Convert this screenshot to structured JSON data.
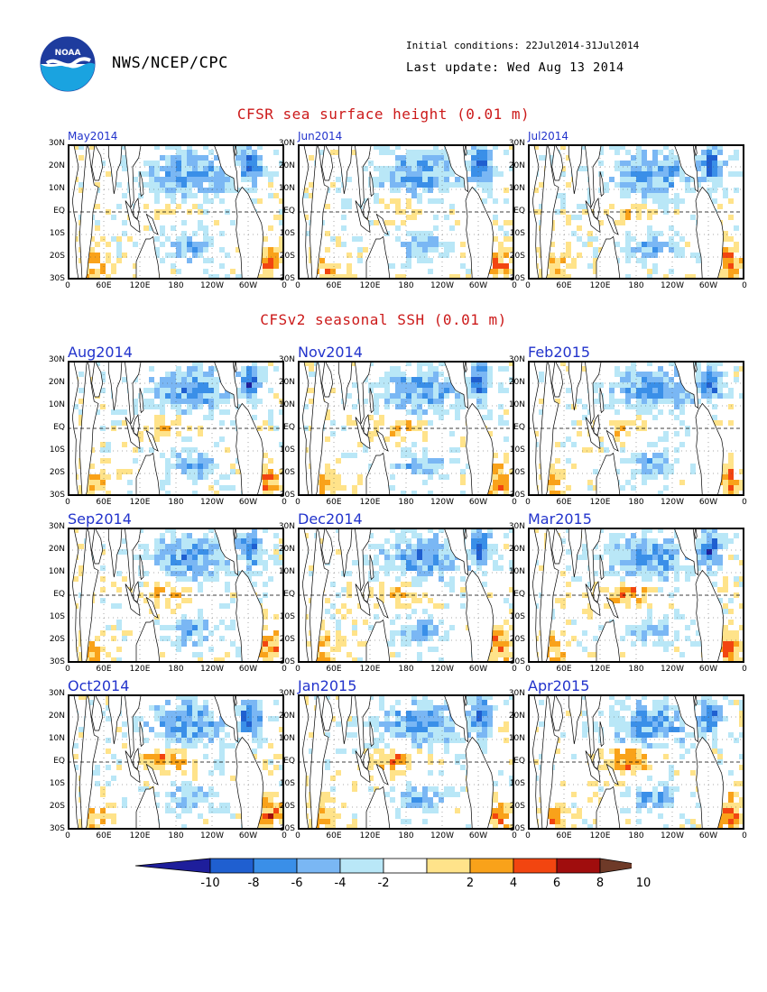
{
  "header": {
    "agency": "NWS/NCEP/CPC",
    "initial_conditions": "Initial conditions: 22Jul2014-31Jul2014",
    "last_update": "Last update: Wed Aug 13 2014",
    "logo_text": "NOAA"
  },
  "sections": [
    {
      "title": "CFSR sea surface height (0.01 m)",
      "panels": [
        "May2014",
        "Jun2014",
        "Jul2014"
      ]
    },
    {
      "title": "CFSv2 seasonal SSH (0.01 m)",
      "panels": [
        "Aug2014",
        "Nov2014",
        "Feb2015",
        "Sep2014",
        "Dec2014",
        "Mar2015",
        "Oct2014",
        "Jan2015",
        "Apr2015"
      ]
    }
  ],
  "axes": {
    "lat_ticks": [
      "30N",
      "20N",
      "10N",
      "EQ",
      "10S",
      "20S",
      "30S"
    ],
    "lon_ticks": [
      "0",
      "60E",
      "120E",
      "180",
      "120W",
      "60W",
      "0"
    ]
  },
  "colorbar": {
    "labels": [
      "-10",
      "-8",
      "-6",
      "-4",
      "-2",
      "2",
      "4",
      "6",
      "8",
      "10"
    ],
    "colors": [
      "#1e1e9b",
      "#1f5fd0",
      "#3a8fe8",
      "#7ab7f4",
      "#b9e7f7",
      "#ffffff",
      "#ffe38a",
      "#f9a21a",
      "#f24510",
      "#a00d0d",
      "#6e3a28"
    ]
  }
}
